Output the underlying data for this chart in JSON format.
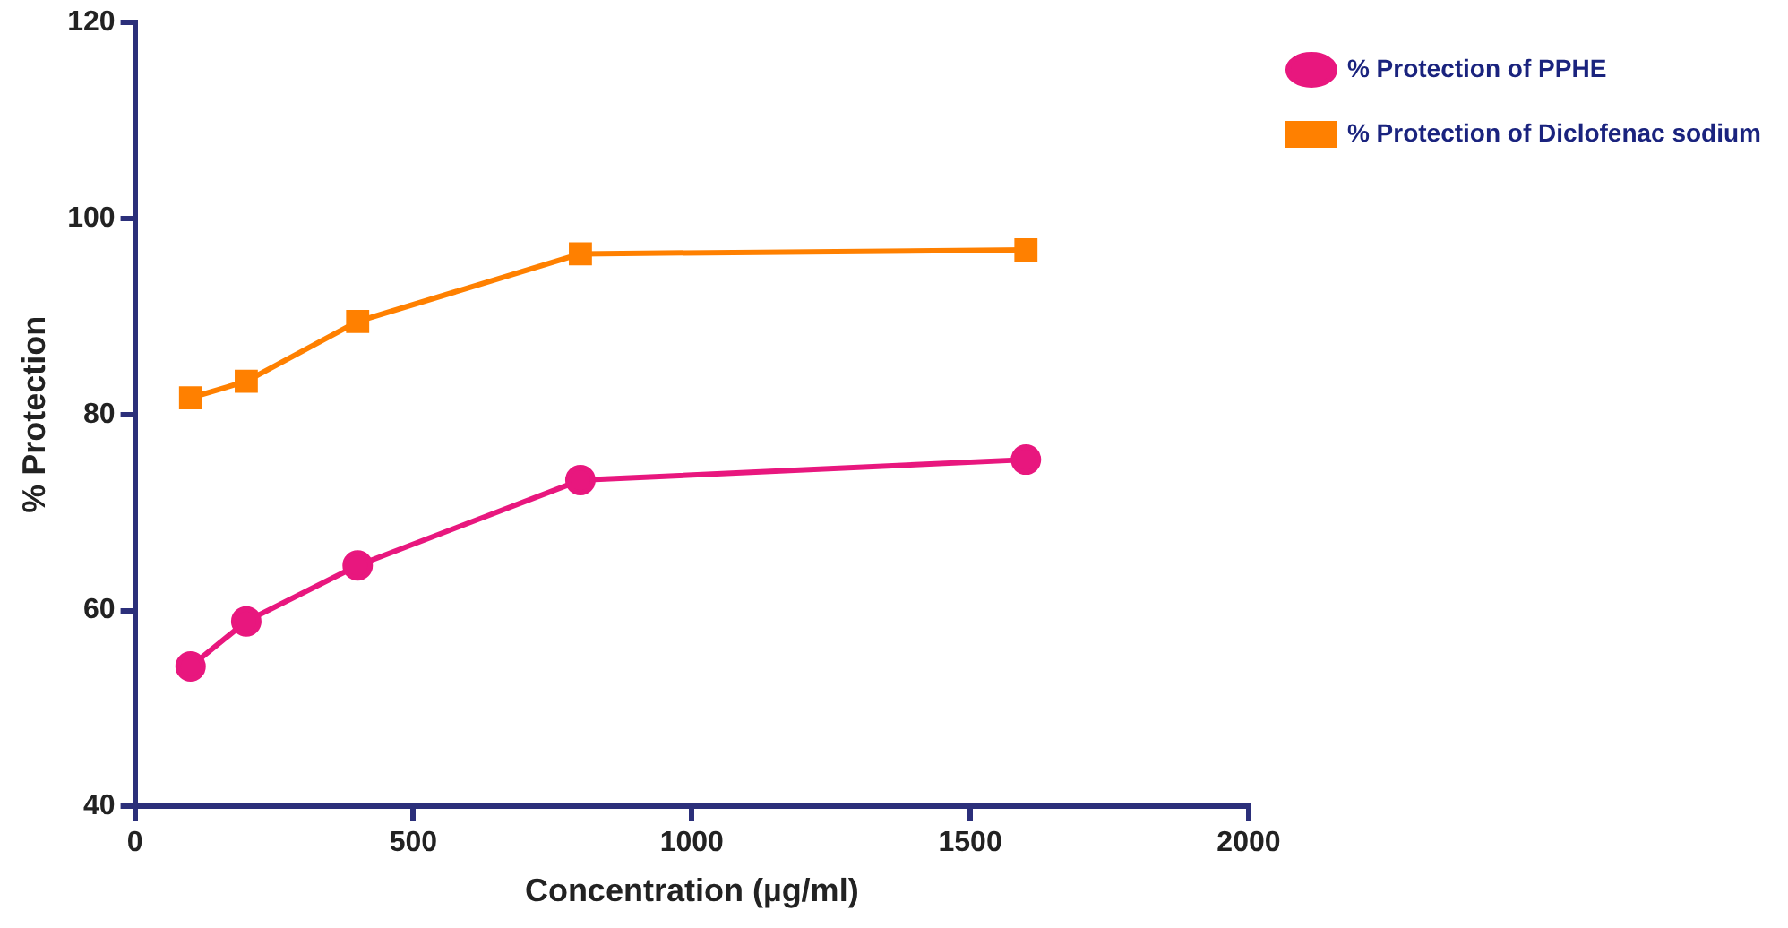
{
  "chart_data": {
    "type": "line",
    "xlabel": "Concentration (µg/ml)",
    "ylabel": "% Protection",
    "x": [
      100,
      200,
      400,
      800,
      1600
    ],
    "series": [
      {
        "name": "% Protection of PPHE",
        "color": "#e8177e",
        "marker": "circle",
        "values": [
          54.3,
          58.9,
          64.6,
          73.3,
          75.4
        ]
      },
      {
        "name": "% Protection of Diclofenac sodium",
        "color": "#ff8000",
        "marker": "square",
        "values": [
          81.7,
          83.4,
          89.5,
          96.4,
          96.8
        ]
      }
    ],
    "xlim": [
      0,
      2000
    ],
    "xticks": [
      0,
      500,
      1000,
      1500,
      2000
    ],
    "ylim": [
      40,
      120
    ],
    "yticks": [
      40,
      60,
      80,
      100,
      120
    ],
    "grid": false,
    "legend": "top right",
    "line_style": "solid"
  }
}
